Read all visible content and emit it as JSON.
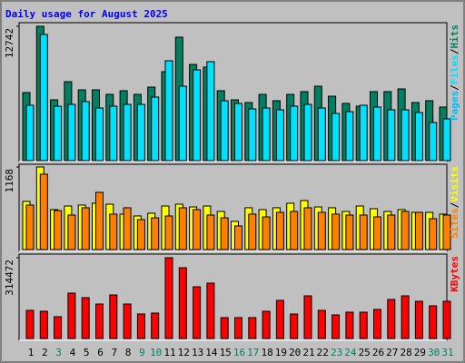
{
  "title": "Daily usage for August 2025",
  "legend_separator": "/",
  "categories": [
    "1",
    "2",
    "3",
    "4",
    "5",
    "6",
    "7",
    "8",
    "9",
    "10",
    "11",
    "12",
    "13",
    "14",
    "15",
    "16",
    "17",
    "18",
    "19",
    "20",
    "21",
    "22",
    "23",
    "24",
    "25",
    "26",
    "27",
    "28",
    "29",
    "30",
    "31"
  ],
  "category_colors": [
    "#000000",
    "#000000",
    "#008060",
    "#000000",
    "#000000",
    "#000000",
    "#000000",
    "#000000",
    "#008060",
    "#008060",
    "#000000",
    "#000000",
    "#000000",
    "#000000",
    "#000000",
    "#008060",
    "#008060",
    "#000000",
    "#000000",
    "#000000",
    "#000000",
    "#000000",
    "#008060",
    "#008060",
    "#000000",
    "#000000",
    "#000000",
    "#000000",
    "#000000",
    "#008060",
    "#008060"
  ],
  "chart_data": [
    {
      "type": "bar",
      "ylim": [
        0,
        12742
      ],
      "yticks": [
        12742
      ],
      "series": [
        {
          "name": "Hits",
          "color": "#008060",
          "values": [
            6458,
            12742,
            5769,
            7491,
            6716,
            6716,
            6285,
            6630,
            6285,
            6974,
            8438,
            11710,
            9127,
            8868,
            6630,
            5769,
            5510,
            6285,
            5683,
            6285,
            6544,
            7060,
            6113,
            5424,
            5166,
            6544,
            6544,
            6802,
            5510,
            5683,
            5080
          ]
        },
        {
          "name": "Files",
          "color": "#00e0ff",
          "values": [
            5252,
            11968,
            5166,
            5338,
            5597,
            4994,
            5166,
            5338,
            5338,
            6027,
            9471,
            7060,
            8610,
            9385,
            5683,
            5424,
            4908,
            4994,
            4822,
            5166,
            5338,
            4994,
            4477,
            4649,
            5252,
            5080,
            4822,
            4822,
            4563,
            3616,
            3961
          ]
        },
        {
          "name": "Pages",
          "color": "#00c0ff",
          "values": [
            null,
            null,
            null,
            null,
            null,
            null,
            null,
            null,
            null,
            null,
            null,
            null,
            null,
            null,
            null,
            null,
            null,
            null,
            null,
            null,
            null,
            null,
            null,
            null,
            null,
            null,
            null,
            null,
            null,
            null,
            null
          ]
        }
      ]
    },
    {
      "type": "bar",
      "ylim": [
        0,
        1168
      ],
      "yticks": [
        1168
      ],
      "series": [
        {
          "name": "Visits",
          "color": "#ffff00",
          "values": [
            681,
            1168,
            565,
            616,
            629,
            655,
            642,
            501,
            475,
            514,
            616,
            642,
            603,
            616,
            539,
            398,
            591,
            565,
            591,
            655,
            693,
            603,
            591,
            539,
            616,
            578,
            539,
            565,
            526,
            526,
            501
          ]
        },
        {
          "name": "Sites",
          "color": "#ff8000",
          "values": [
            629,
            1066,
            552,
            488,
            591,
            809,
            501,
            591,
            424,
            449,
            475,
            591,
            565,
            488,
            449,
            334,
            501,
            462,
            526,
            539,
            591,
            526,
            501,
            488,
            488,
            462,
            488,
            539,
            526,
            437,
            488
          ]
        }
      ]
    },
    {
      "type": "bar",
      "ylim": [
        0,
        314472
      ],
      "yticks": [
        314472
      ],
      "series": [
        {
          "name": "KBytes",
          "color": "#ff0000",
          "values": [
            109523,
            105990,
            84792,
            176650,
            158985,
            134254,
            169584,
            134254,
            95391,
            98924,
            314472,
            275574,
            201381,
            215513,
            81259,
            81259,
            81259,
            105990,
            148386,
            95391,
            166051,
            109523,
            91858,
            102457,
            102457,
            113056,
            151919,
            166051,
            144853,
            127188,
            144853
          ]
        }
      ]
    }
  ]
}
